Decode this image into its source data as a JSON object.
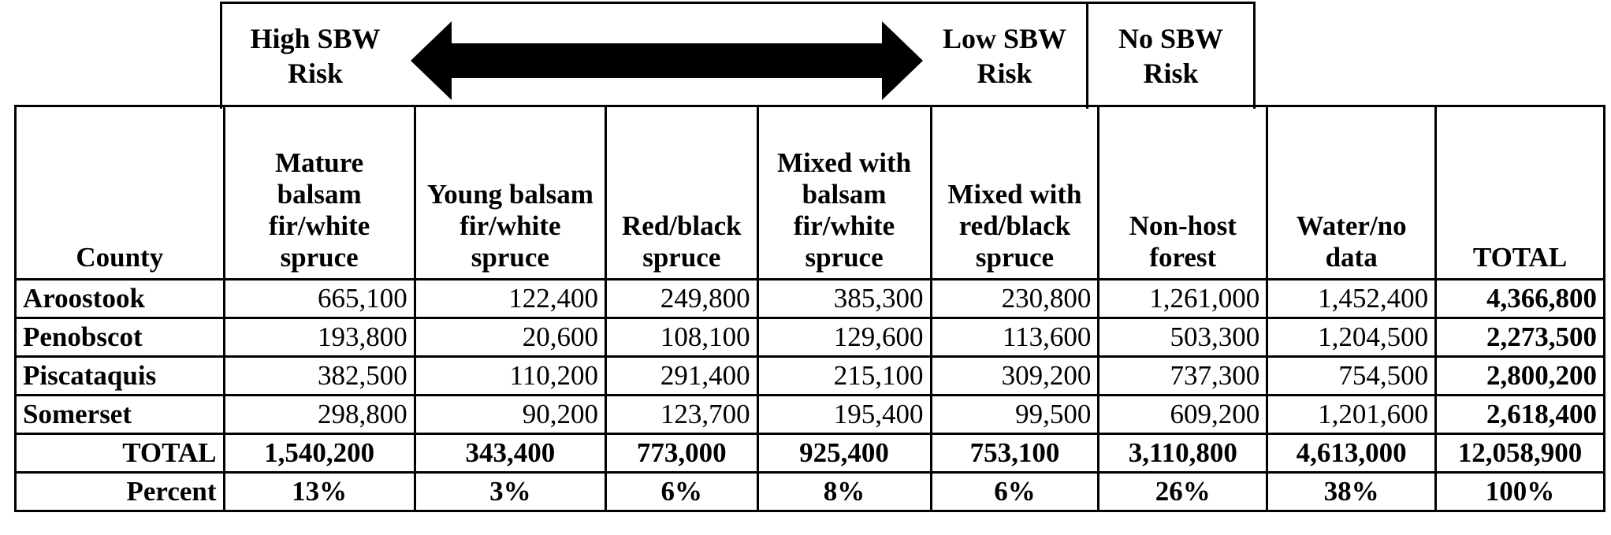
{
  "risk_header": {
    "high": "High SBW Risk",
    "low": "Low SBW Risk",
    "none": "No SBW Risk"
  },
  "table": {
    "headers": [
      "County",
      "Mature balsam fir/white spruce",
      "Young balsam fir/white spruce",
      "Red/black spruce",
      "Mixed with balsam fir/white spruce",
      "Mixed with red/black spruce",
      "Non-host forest",
      "Water/no data",
      "TOTAL"
    ],
    "rows": [
      {
        "county": "Aroostook",
        "values": [
          "665,100",
          "122,400",
          "249,800",
          "385,300",
          "230,800",
          "1,261,000",
          "1,452,400"
        ],
        "total": "4,366,800"
      },
      {
        "county": "Penobscot",
        "values": [
          "193,800",
          "20,600",
          "108,100",
          "129,600",
          "113,600",
          "503,300",
          "1,204,500"
        ],
        "total": "2,273,500"
      },
      {
        "county": "Piscataquis",
        "values": [
          "382,500",
          "110,200",
          "291,400",
          "215,100",
          "309,200",
          "737,300",
          "754,500"
        ],
        "total": "2,800,200"
      },
      {
        "county": "Somerset",
        "values": [
          "298,800",
          "90,200",
          "123,700",
          "195,400",
          "99,500",
          "609,200",
          "1,201,600"
        ],
        "total": "2,618,400"
      }
    ],
    "total_row": {
      "label": "TOTAL",
      "values": [
        "1,540,200",
        "343,400",
        "773,000",
        "925,400",
        "753,100",
        "3,110,800",
        "4,613,000",
        "12,058,900"
      ]
    },
    "percent_row": {
      "label": "Percent",
      "values": [
        "13%",
        "3%",
        "6%",
        "8%",
        "6%",
        "26%",
        "38%",
        "100%"
      ]
    }
  }
}
